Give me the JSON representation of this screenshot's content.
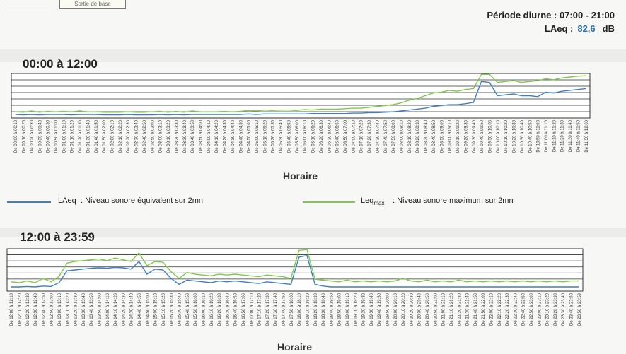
{
  "header": {
    "period_label": "Période diurne : 07:00 - 21:00",
    "laeq_label": "LAeq :",
    "laeq_value": "82,6",
    "laeq_unit": "dB",
    "tab_stub": "Sortie de base"
  },
  "legend": {
    "laeq_name": "LAeq",
    "laeq_desc": ":  Niveau sonore équivalent sur 2mn",
    "leq_name": "Leq",
    "leq_sub": "max",
    "leq_desc": ":  Niveau sonore maximum sur 2mn"
  },
  "colors": {
    "laeq": "#3d7fc4",
    "leqmax": "#7ec94a",
    "grid": "#333333"
  },
  "chart_data": [
    {
      "type": "line",
      "title": "00:00 à 12:00",
      "xlabel": "Horaire",
      "ylabel": "",
      "grid": true,
      "legend_position": "bottom",
      "categories": [
        "De 00:00 à 00:10",
        "De 00:10 à 00:20",
        "De 00:20 à 00:30",
        "De 00:30 à 00:40",
        "De 00:40 à 00:50",
        "De 00:50 à 01:00",
        "De 01:00 à 01:10",
        "De 01:10 à 01:20",
        "De 01:20 à 01:30",
        "De 01:30 à 01:40",
        "De 01:40 à 01:50",
        "De 01:50 à 02:00",
        "De 02:00 à 02:10",
        "De 02:10 à 02:20",
        "De 02:20 à 02:30",
        "De 02:30 à 02:40",
        "De 02:40 à 02:50",
        "De 02:50 à 03:00",
        "De 03:00 à 03:10",
        "De 03:10 à 03:20",
        "De 03:20 à 03:30",
        "De 03:30 à 03:40",
        "De 03:40 à 03:50",
        "De 03:50 à 04:00",
        "De 04:00 à 04:10",
        "De 04:10 à 04:20",
        "De 04:20 à 04:30",
        "De 04:30 à 04:40",
        "De 04:40 à 04:50",
        "De 04:50 à 05:00",
        "De 05:00 à 05:10",
        "De 05:10 à 05:20",
        "De 05:20 à 05:30",
        "De 05:30 à 05:40",
        "De 05:40 à 05:50",
        "De 05:50 à 06:00",
        "De 06:00 à 06:10",
        "De 06:10 à 06:20",
        "De 06:20 à 06:30",
        "De 06:30 à 06:40",
        "De 06:40 à 06:50",
        "De 06:50 à 07:00",
        "De 07:00 à 07:10",
        "De 07:10 à 07:20",
        "De 07:20 à 07:30",
        "De 07:30 à 07:40",
        "De 07:40 à 07:50",
        "De 07:50 à 08:00",
        "De 08:00 à 08:10",
        "De 08:10 à 08:20",
        "De 08:20 à 08:30",
        "De 08:30 à 08:40",
        "De 08:40 à 08:50",
        "De 08:50 à 09:00",
        "De 09:00 à 09:10",
        "De 09:10 à 09:20",
        "De 09:20 à 09:30",
        "De 09:30 à 09:40",
        "De 09:40 à 09:50",
        "De 09:50 à 10:00",
        "De 10:00 à 10:10",
        "De 10:10 à 10:20",
        "De 10:20 à 10:30",
        "De 10:30 à 10:40",
        "De 10:40 à 10:50",
        "De 10:50 à 11:00",
        "De 11:00 à 11:10",
        "De 11:10 à 11:20",
        "De 11:20 à 11:30",
        "De 11:30 à 11:40",
        "De 11:40 à 11:50",
        "De 11:50 à 12:00"
      ],
      "ylim": [
        0,
        100
      ],
      "series": [
        {
          "name": "LAeq",
          "values": [
            8,
            7,
            8,
            7,
            8,
            8,
            8,
            7,
            8,
            8,
            8,
            7,
            7,
            7,
            8,
            7,
            7,
            7,
            8,
            7,
            8,
            7,
            8,
            8,
            8,
            8,
            8,
            8,
            8,
            9,
            8,
            9,
            9,
            9,
            9,
            9,
            9,
            10,
            10,
            10,
            10,
            10,
            11,
            11,
            12,
            12,
            13,
            14,
            16,
            18,
            20,
            22,
            26,
            28,
            30,
            30,
            32,
            35,
            82,
            80,
            50,
            52,
            54,
            50,
            50,
            48,
            58,
            56,
            60,
            62,
            64,
            66
          ]
        },
        {
          "name": "Leqmax",
          "values": [
            14,
            13,
            16,
            13,
            15,
            14,
            15,
            14,
            16,
            14,
            14,
            13,
            13,
            13,
            14,
            13,
            13,
            14,
            15,
            13,
            15,
            13,
            16,
            14,
            14,
            14,
            15,
            14,
            15,
            17,
            16,
            18,
            17,
            18,
            18,
            17,
            19,
            18,
            20,
            20,
            20,
            21,
            22,
            22,
            24,
            26,
            28,
            30,
            34,
            40,
            44,
            50,
            56,
            58,
            62,
            60,
            64,
            66,
            98,
            98,
            80,
            82,
            84,
            80,
            82,
            84,
            88,
            86,
            90,
            92,
            94,
            95
          ]
        }
      ]
    },
    {
      "type": "line",
      "title": "12:00 à 23:59",
      "xlabel": "Horaire",
      "ylabel": "",
      "grid": true,
      "categories": [
        "De 12:00 à 12:10",
        "De 12:10 à 12:20",
        "De 12:20 à 12:30",
        "De 12:30 à 12:40",
        "De 12:40 à 12:50",
        "De 12:50 à 13:00",
        "De 13:00 à 13:10",
        "De 13:10 à 13:20",
        "De 13:20 à 13:30",
        "De 13:30 à 13:40",
        "De 13:40 à 13:50",
        "De 13:50 à 14:00",
        "De 14:00 à 14:10",
        "De 14:10 à 14:20",
        "De 14:20 à 14:30",
        "De 14:30 à 14:40",
        "De 14:40 à 14:50",
        "De 14:50 à 15:00",
        "De 15:00 à 15:10",
        "De 15:10 à 15:20",
        "De 15:20 à 15:30",
        "De 15:30 à 15:40",
        "De 15:40 à 15:50",
        "De 15:50 à 16:00",
        "De 16:00 à 16:10",
        "De 16:10 à 16:20",
        "De 16:20 à 16:30",
        "De 16:30 à 16:40",
        "De 16:40 à 16:50",
        "De 16:50 à 17:00",
        "De 17:00 à 17:10",
        "De 17:10 à 17:20",
        "De 17:20 à 17:30",
        "De 17:30 à 17:40",
        "De 17:40 à 17:50",
        "De 17:50 à 18:00",
        "De 18:00 à 18:10",
        "De 18:10 à 18:20",
        "De 18:20 à 18:30",
        "De 18:30 à 18:40",
        "De 18:40 à 18:50",
        "De 18:50 à 19:00",
        "De 19:00 à 19:10",
        "De 19:10 à 19:20",
        "De 19:20 à 19:30",
        "De 19:30 à 19:40",
        "De 19:40 à 19:50",
        "De 19:50 à 20:00",
        "De 20:00 à 20:10",
        "De 20:10 à 20:20",
        "De 20:20 à 20:30",
        "De 20:30 à 20:40",
        "De 20:40 à 20:50",
        "De 20:50 à 21:00",
        "De 21:00 à 21:10",
        "De 21:10 à 21:20",
        "De 21:20 à 21:30",
        "De 21:30 à 21:40",
        "De 21:40 à 21:50",
        "De 21:50 à 22:00",
        "De 22:00 à 22:10",
        "De 22:10 à 22:20",
        "De 22:20 à 22:30",
        "De 22:30 à 22:40",
        "De 22:40 à 22:50",
        "De 22:50 à 23:00",
        "De 23:00 à 23:10",
        "De 23:10 à 23:20",
        "De 23:20 à 23:30",
        "De 23:30 à 23:40",
        "De 23:40 à 23:50",
        "De 23:50 à 23:59"
      ],
      "ylim": [
        0,
        100
      ],
      "series": [
        {
          "name": "LAeq",
          "values": [
            10,
            10,
            11,
            10,
            12,
            11,
            20,
            48,
            50,
            52,
            54,
            55,
            54,
            56,
            55,
            52,
            70,
            40,
            52,
            50,
            30,
            16,
            26,
            24,
            22,
            20,
            24,
            22,
            24,
            22,
            20,
            18,
            22,
            20,
            18,
            16,
            80,
            84,
            16,
            12,
            10,
            10,
            10,
            10,
            10,
            10,
            10,
            10,
            10,
            10,
            10,
            10,
            10,
            10,
            10,
            10,
            10,
            10,
            10,
            10,
            10,
            10,
            10,
            10,
            10,
            10,
            10,
            10,
            10,
            10,
            10,
            10
          ]
        },
        {
          "name": "Leqmax",
          "values": [
            22,
            20,
            24,
            20,
            30,
            22,
            35,
            66,
            70,
            72,
            74,
            76,
            72,
            78,
            74,
            70,
            90,
            60,
            70,
            68,
            46,
            30,
            44,
            40,
            38,
            36,
            40,
            38,
            40,
            38,
            36,
            34,
            38,
            36,
            34,
            30,
            96,
            98,
            28,
            26,
            24,
            22,
            26,
            22,
            24,
            22,
            24,
            22,
            24,
            30,
            24,
            22,
            26,
            22,
            24,
            22,
            26,
            22,
            24,
            22,
            24,
            22,
            24,
            22,
            24,
            22,
            24,
            22,
            24,
            22,
            24,
            24
          ]
        }
      ]
    }
  ]
}
